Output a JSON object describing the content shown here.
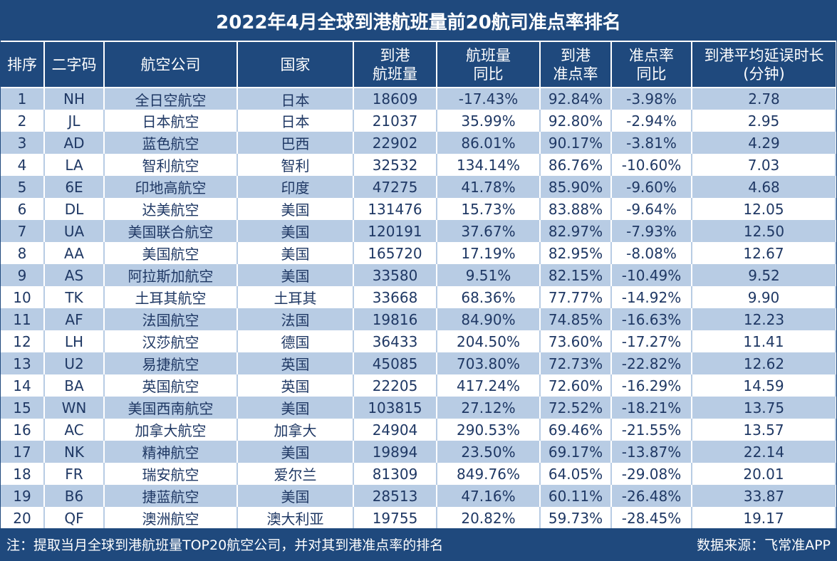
{
  "title": "2022年4月全球到港航班量前20航司准点率排名",
  "headers": [
    "排序",
    "二字码",
    "航空公司",
    "国家",
    "到港\n航班量",
    "航班量\n同比",
    "到港\n准点率",
    "准点率\n同比",
    "到港平均延误时长\n(分钟)"
  ],
  "rows": [
    [
      "1",
      "NH",
      "全日空航空",
      "日本",
      "18609",
      "-17.43%",
      "92.84%",
      "-3.98%",
      "2.78"
    ],
    [
      "2",
      "JL",
      "日本航空",
      "日本",
      "21037",
      "35.99%",
      "92.80%",
      "-2.94%",
      "2.95"
    ],
    [
      "3",
      "AD",
      "蓝色航空",
      "巴西",
      "22902",
      "86.01%",
      "90.17%",
      "-3.81%",
      "4.29"
    ],
    [
      "4",
      "LA",
      "智利航空",
      "智利",
      "32532",
      "134.14%",
      "86.76%",
      "-10.60%",
      "7.03"
    ],
    [
      "5",
      "6E",
      "印地高航空",
      "印度",
      "47275",
      "41.78%",
      "85.90%",
      "-9.60%",
      "4.68"
    ],
    [
      "6",
      "DL",
      "达美航空",
      "美国",
      "131476",
      "15.73%",
      "83.88%",
      "-9.64%",
      "12.05"
    ],
    [
      "7",
      "UA",
      "美国联合航空",
      "美国",
      "120191",
      "37.67%",
      "82.97%",
      "-7.93%",
      "12.50"
    ],
    [
      "8",
      "AA",
      "美国航空",
      "美国",
      "165720",
      "17.19%",
      "82.95%",
      "-8.08%",
      "12.67"
    ],
    [
      "9",
      "AS",
      "阿拉斯加航空",
      "美国",
      "33580",
      "9.51%",
      "82.15%",
      "-10.49%",
      "9.52"
    ],
    [
      "10",
      "TK",
      "土耳其航空",
      "土耳其",
      "33668",
      "68.36%",
      "77.77%",
      "-14.92%",
      "9.90"
    ],
    [
      "11",
      "AF",
      "法国航空",
      "法国",
      "19816",
      "84.90%",
      "74.85%",
      "-16.63%",
      "12.23"
    ],
    [
      "12",
      "LH",
      "汉莎航空",
      "德国",
      "36433",
      "204.50%",
      "73.60%",
      "-17.27%",
      "11.41"
    ],
    [
      "13",
      "U2",
      "易捷航空",
      "英国",
      "45085",
      "703.80%",
      "72.73%",
      "-22.82%",
      "12.62"
    ],
    [
      "14",
      "BA",
      "英国航空",
      "英国",
      "22205",
      "417.24%",
      "72.60%",
      "-16.29%",
      "14.59"
    ],
    [
      "15",
      "WN",
      "美国西南航空",
      "美国",
      "103815",
      "27.12%",
      "72.52%",
      "-18.21%",
      "13.75"
    ],
    [
      "16",
      "AC",
      "加拿大航空",
      "加拿大",
      "24904",
      "290.53%",
      "69.46%",
      "-21.55%",
      "13.57"
    ],
    [
      "17",
      "NK",
      "精神航空",
      "美国",
      "19894",
      "23.50%",
      "69.17%",
      "-13.87%",
      "22.14"
    ],
    [
      "18",
      "FR",
      "瑞安航空",
      "爱尔兰",
      "81309",
      "849.76%",
      "64.05%",
      "-29.08%",
      "20.01"
    ],
    [
      "19",
      "B6",
      "捷蓝航空",
      "美国",
      "28513",
      "47.16%",
      "60.11%",
      "-26.48%",
      "33.87"
    ],
    [
      "20",
      "QF",
      "澳洲航空",
      "澳大利亚",
      "19755",
      "20.82%",
      "59.73%",
      "-28.45%",
      "19.17"
    ]
  ],
  "footer": {
    "note": "注：提取当月全球到港航班量TOP20航空公司，并对其到港准点率的排名",
    "source": "数据来源：飞常准APP"
  },
  "colors": {
    "header": "#1f497d",
    "stripe": "#b8cce4",
    "text": "#1f3864"
  }
}
